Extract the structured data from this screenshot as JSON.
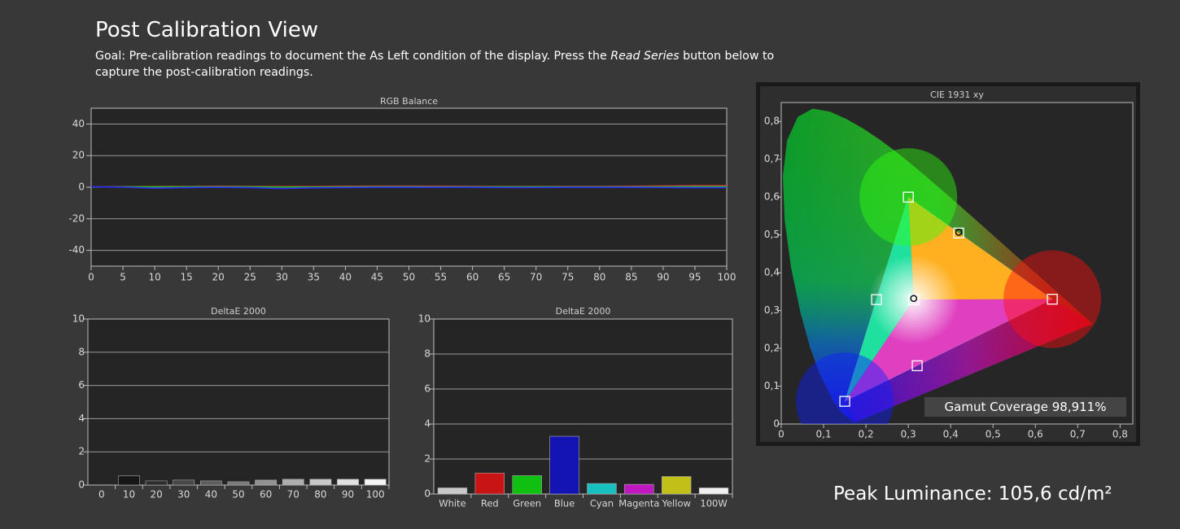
{
  "page": {
    "title": "Post Calibration View",
    "goal_prefix": "Goal: Pre-calibration readings to document the As Left condition of the display. Press the ",
    "goal_italic": "Read Series",
    "goal_suffix": " button below to capture the post-calibration readings.",
    "peak_luminance": "Peak Luminance: 105,6 cd/m²",
    "gamut_coverage": "Gamut Coverage 98,911%"
  },
  "colors": {
    "background": "#383838",
    "plot_bg": "#252525",
    "grid": "#a0a0a0",
    "red_line": "#e0203a",
    "blue_line": "#2a2aff",
    "green_line": "#20c020"
  },
  "chart_data": [
    {
      "id": "rgb",
      "type": "line",
      "title": "RGB Balance",
      "x": [
        0,
        5,
        10,
        15,
        20,
        25,
        30,
        35,
        40,
        45,
        50,
        55,
        60,
        65,
        70,
        75,
        80,
        85,
        90,
        95,
        100
      ],
      "xticks": [
        "0",
        "5",
        "10",
        "15",
        "20",
        "25",
        "30",
        "35",
        "40",
        "45",
        "50",
        "55",
        "60",
        "65",
        "70",
        "75",
        "80",
        "85",
        "90",
        "95",
        "100"
      ],
      "yticks": [
        "40",
        "20",
        "0",
        "-20",
        "-40"
      ],
      "ylim": [
        -50,
        50
      ],
      "grid": true,
      "series": [
        {
          "color": "#e0203a",
          "values": [
            0.2,
            0.3,
            0.4,
            0.4,
            0.6,
            0.5,
            0.4,
            0.4,
            0.6,
            0.7,
            0.7,
            0.6,
            0.5,
            0.4,
            0.4,
            0.5,
            0.5,
            0.6,
            0.8,
            1.0,
            1.0
          ]
        },
        {
          "color": "#20c020",
          "values": [
            0.1,
            0.2,
            0.2,
            0.2,
            0.3,
            0.2,
            0.1,
            0.1,
            0.2,
            0.3,
            0.3,
            0.2,
            0.2,
            0.2,
            0.2,
            0.2,
            0.2,
            0.2,
            0.3,
            0.4,
            0.4
          ]
        },
        {
          "color": "#2a2aff",
          "values": [
            0.3,
            0.0,
            -0.6,
            -0.3,
            -0.1,
            -0.3,
            -0.8,
            -0.4,
            -0.2,
            -0.1,
            -0.1,
            -0.1,
            -0.1,
            -0.2,
            -0.2,
            -0.1,
            -0.1,
            -0.1,
            -0.2,
            -0.3,
            -0.3
          ]
        }
      ]
    },
    {
      "id": "grayscale-de",
      "type": "bar",
      "title": "DeltaE 2000",
      "categories": [
        "0",
        "10",
        "20",
        "30",
        "40",
        "50",
        "60",
        "70",
        "80",
        "90",
        "100"
      ],
      "values": [
        0.0,
        0.55,
        0.25,
        0.3,
        0.25,
        0.2,
        0.3,
        0.35,
        0.35,
        0.35,
        0.35
      ],
      "bar_colors": [
        "#000000",
        "#161616",
        "#2d2d2d",
        "#474747",
        "#5e5e5e",
        "#787878",
        "#929292",
        "#adadad",
        "#c8c8c8",
        "#e0e0e0",
        "#f5f5f5"
      ],
      "yticks": [
        "10",
        "8",
        "6",
        "4",
        "2",
        "0"
      ],
      "ylim": [
        0,
        10
      ],
      "grid": true
    },
    {
      "id": "color-de",
      "type": "bar",
      "title": "DeltaE 2000",
      "categories": [
        "White",
        "Red",
        "Green",
        "Blue",
        "Cyan",
        "Magenta",
        "Yellow",
        "100W"
      ],
      "values": [
        0.35,
        1.2,
        1.05,
        3.3,
        0.6,
        0.55,
        1.0,
        0.35
      ],
      "bar_colors": [
        "#c8c8c8",
        "#c81414",
        "#10c010",
        "#1414b4",
        "#18c0c0",
        "#c018c0",
        "#c0c018",
        "#f0f0f0"
      ],
      "yticks": [
        "10",
        "8",
        "6",
        "4",
        "2",
        "0"
      ],
      "ylim": [
        0,
        10
      ],
      "grid": true
    },
    {
      "id": "cie",
      "type": "scatter",
      "title": "CIE 1931 xy",
      "xticks": [
        "0",
        "0,1",
        "0,2",
        "0,3",
        "0,4",
        "0,5",
        "0,6",
        "0,7",
        "0,8"
      ],
      "yticks": [
        "0,8",
        "0,7",
        "0,6",
        "0,5",
        "0,4",
        "0,3",
        "0,2",
        "0,1",
        "0"
      ],
      "xlim": [
        0,
        0.83
      ],
      "ylim": [
        0,
        0.85
      ],
      "targets": [
        {
          "name": "R",
          "x": 0.64,
          "y": 0.33
        },
        {
          "name": "G",
          "x": 0.3,
          "y": 0.6
        },
        {
          "name": "B",
          "x": 0.15,
          "y": 0.06
        },
        {
          "name": "C",
          "x": 0.225,
          "y": 0.329
        },
        {
          "name": "M",
          "x": 0.321,
          "y": 0.154
        },
        {
          "name": "Y",
          "x": 0.419,
          "y": 0.505
        },
        {
          "name": "W",
          "x": 0.3127,
          "y": 0.329
        }
      ],
      "measured": [
        {
          "name": "Y",
          "x": 0.419,
          "y": 0.507
        },
        {
          "name": "W",
          "x": 0.3127,
          "y": 0.332
        }
      ]
    }
  ]
}
